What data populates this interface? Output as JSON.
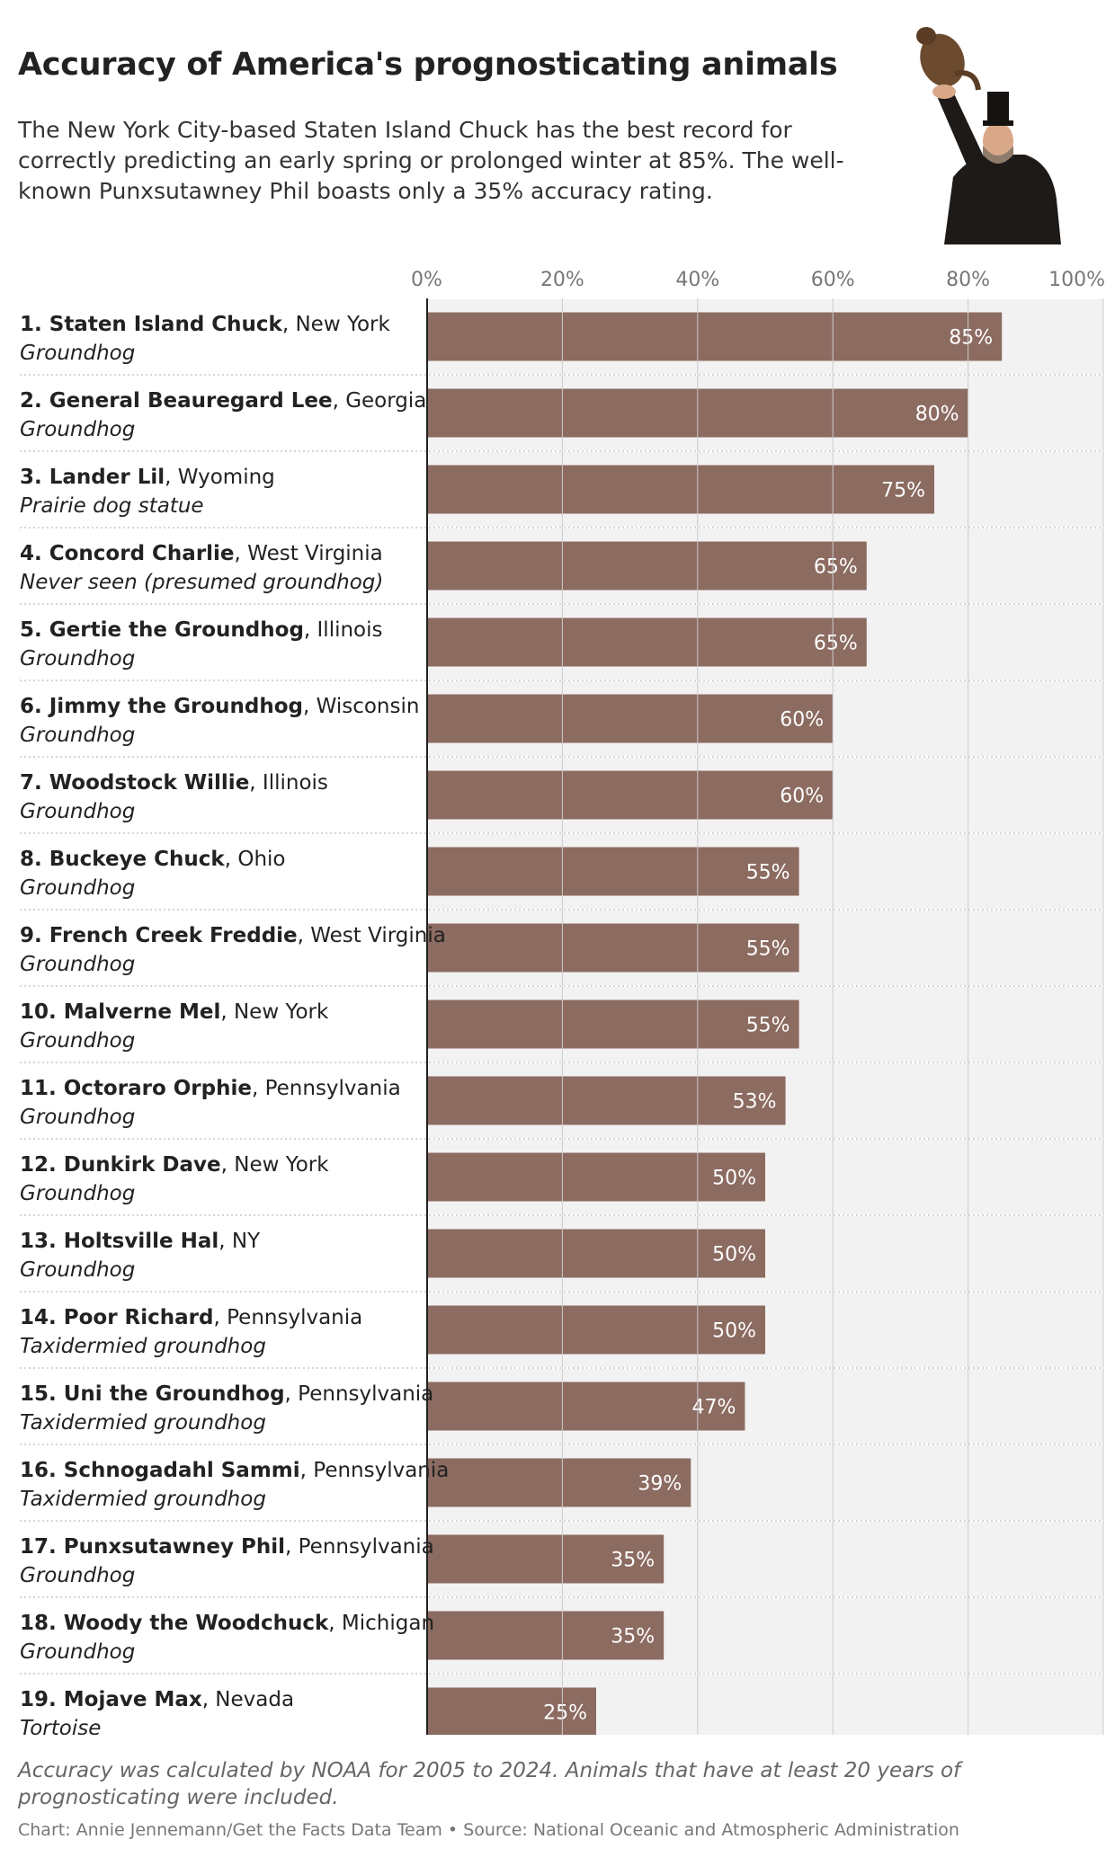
{
  "header": {
    "title": "Accuracy of America's prognosticating animals",
    "subtitle": "The New York City-based Staten Island Chuck has the best record for correctly predicting an early spring or prolonged winter at 85%. The well-known Punxsutawney Phil boasts only a 35% accuracy rating."
  },
  "colors": {
    "bar": "#8c6b61",
    "track": "#f2f2f2",
    "grid": "#cccccc",
    "axis": "#222222"
  },
  "chart_data": {
    "type": "bar",
    "orientation": "horizontal",
    "title": "Accuracy of America's prognosticating animals",
    "xlim": [
      0,
      100
    ],
    "ticks": [
      {
        "value": 0,
        "label": "0%"
      },
      {
        "value": 20,
        "label": "20%"
      },
      {
        "value": 40,
        "label": "40%"
      },
      {
        "value": 60,
        "label": "60%"
      },
      {
        "value": 80,
        "label": "80%"
      },
      {
        "value": 100,
        "label": "100%"
      }
    ],
    "grid": true,
    "rows": [
      {
        "rank": "1.",
        "name": "Staten Island Chuck",
        "state": "New York",
        "type": "Groundhog",
        "value": 85,
        "label": "85%"
      },
      {
        "rank": "2.",
        "name": "General Beauregard Lee",
        "state": "Georgia",
        "type": "Groundhog",
        "value": 80,
        "label": "80%"
      },
      {
        "rank": "3.",
        "name": "Lander Lil",
        "state": "Wyoming",
        "type": "Prairie dog statue",
        "value": 75,
        "label": "75%"
      },
      {
        "rank": "4.",
        "name": "Concord Charlie",
        "state": "West Virginia",
        "type": "Never seen (presumed groundhog)",
        "value": 65,
        "label": "65%"
      },
      {
        "rank": "5.",
        "name": "Gertie the Groundhog",
        "state": "Illinois",
        "type": "Groundhog",
        "value": 65,
        "label": "65%"
      },
      {
        "rank": "6.",
        "name": "Jimmy the Groundhog",
        "state": "Wisconsin",
        "type": "Groundhog",
        "value": 60,
        "label": "60%"
      },
      {
        "rank": "7.",
        "name": "Woodstock Willie",
        "state": "Illinois",
        "type": "Groundhog",
        "value": 60,
        "label": "60%"
      },
      {
        "rank": "8.",
        "name": "Buckeye Chuck",
        "state": "Ohio",
        "type": "Groundhog",
        "value": 55,
        "label": "55%"
      },
      {
        "rank": "9.",
        "name": "French Creek Freddie",
        "state": "West Virginia",
        "type": "Groundhog",
        "value": 55,
        "label": "55%"
      },
      {
        "rank": "10.",
        "name": "Malverne Mel",
        "state": "New York",
        "type": "Groundhog",
        "value": 55,
        "label": "55%"
      },
      {
        "rank": "11.",
        "name": "Octoraro Orphie",
        "state": "Pennsylvania",
        "type": "Groundhog",
        "value": 53,
        "label": "53%"
      },
      {
        "rank": "12.",
        "name": "Dunkirk Dave",
        "state": "New York",
        "type": "Groundhog",
        "value": 50,
        "label": "50%"
      },
      {
        "rank": "13.",
        "name": "Holtsville Hal",
        "state": "NY",
        "type": "Groundhog",
        "value": 50,
        "label": "50%"
      },
      {
        "rank": "14.",
        "name": "Poor Richard",
        "state": "Pennsylvania",
        "type": "Taxidermied groundhog",
        "value": 50,
        "label": "50%"
      },
      {
        "rank": "15.",
        "name": "Uni the Groundhog",
        "state": "Pennsylvania",
        "type": "Taxidermied groundhog",
        "value": 47,
        "label": "47%"
      },
      {
        "rank": "16.",
        "name": "Schnogadahl Sammi",
        "state": "Pennsylvania",
        "type": "Taxidermied groundhog",
        "value": 39,
        "label": "39%"
      },
      {
        "rank": "17.",
        "name": "Punxsutawney Phil",
        "state": "Pennsylvania",
        "type": "Groundhog",
        "value": 35,
        "label": "35%"
      },
      {
        "rank": "18.",
        "name": "Woody the Woodchuck",
        "state": "Michigan",
        "type": "Groundhog",
        "value": 35,
        "label": "35%"
      },
      {
        "rank": "19.",
        "name": "Mojave Max",
        "state": "Nevada",
        "type": "Tortoise",
        "value": 25,
        "label": "25%"
      }
    ]
  },
  "footer": {
    "note": "Accuracy was calculated by NOAA for 2005 to 2024. Animals that have at least 20 years of prognosticating were included.",
    "credit": "Chart: Annie Jennemann/Get the Facts Data Team • Source: National Oceanic and Atmospheric Administration"
  }
}
